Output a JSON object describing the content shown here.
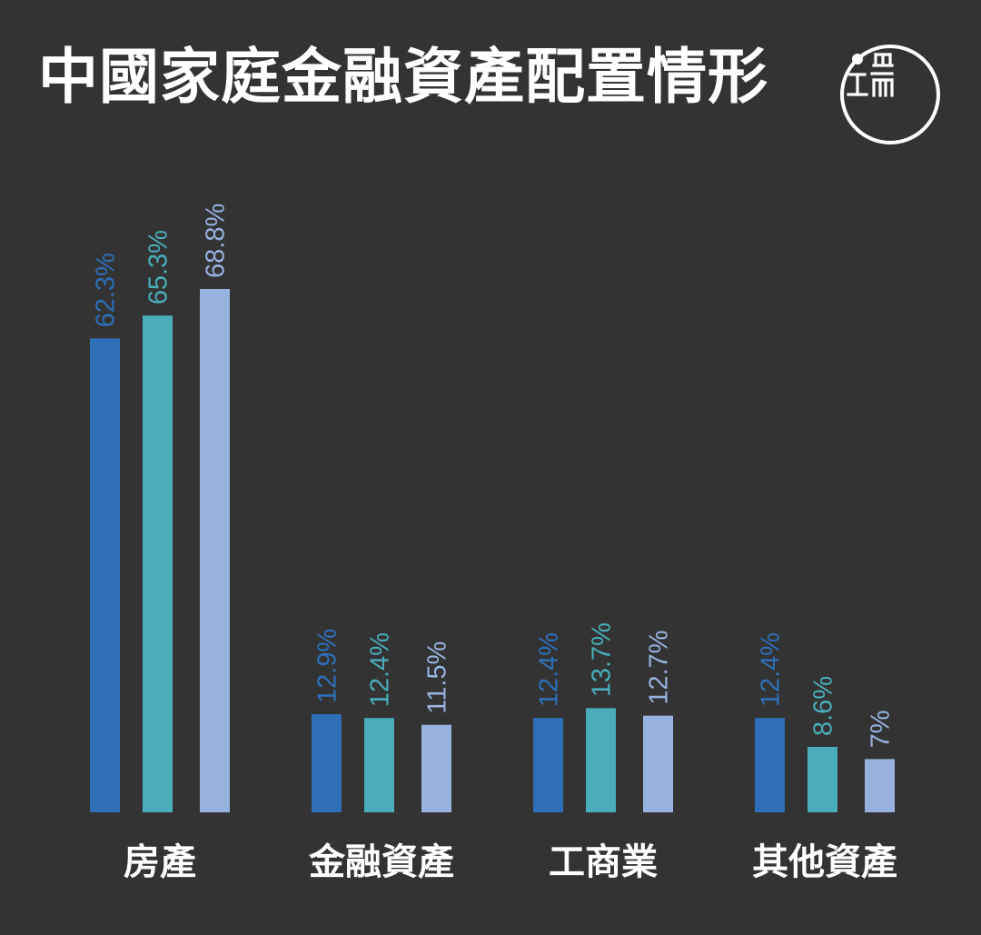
{
  "title": "中國家庭金融資產配置情形",
  "logo": {
    "icon": "initium-logo-icon",
    "color": "#ffffff"
  },
  "colors": {
    "background": "#333333",
    "series": [
      "#2e6fb8",
      "#49aeb9",
      "#98b2df"
    ]
  },
  "chart_data": {
    "type": "bar",
    "title": "中國家庭金融資產配置情形",
    "categories": [
      "房產",
      "金融資產",
      "工商業",
      "其他資產"
    ],
    "series": [
      {
        "values": [
          62.3,
          12.9,
          12.4,
          12.4
        ],
        "labels": [
          "62.3%",
          "12.9%",
          "12.4%",
          "12.4%"
        ]
      },
      {
        "values": [
          65.3,
          12.4,
          13.7,
          8.6
        ],
        "labels": [
          "65.3%",
          "12.4%",
          "13.7%",
          "8.6%"
        ]
      },
      {
        "values": [
          68.8,
          11.5,
          12.7,
          7
        ],
        "labels": [
          "68.8%",
          "11.5%",
          "12.7%",
          "7%"
        ]
      }
    ],
    "ylim": [
      0,
      80
    ],
    "grid": false,
    "legend": "none"
  }
}
